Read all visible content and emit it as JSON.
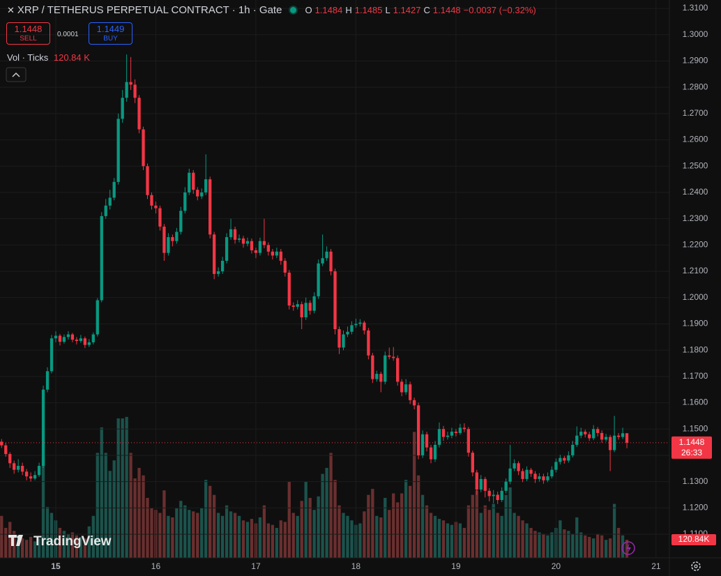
{
  "chart_data": {
    "type": "candlestick",
    "title": "XRP / TETHERUS PERPETUAL CONTRACT · 1h · Gate",
    "ohlc_labels": [
      "O",
      "H",
      "L",
      "C"
    ],
    "change": "−0.0037 (−0.32%)",
    "sell_price": "1.1448",
    "sell_label": "SELL",
    "spread": "0.0001",
    "buy_price": "1.1449",
    "buy_label": "BUY",
    "volume_title": "Vol · Ticks",
    "volume_last_label": "120.84 K",
    "volume_axis_label": "120.84K",
    "countdown": "26:33",
    "logo": "TradingView",
    "up_color": "#089981",
    "down_color": "#f23645",
    "up_volume_color": "#1d5f57",
    "down_volume_color": "#7a3535",
    "grid": true,
    "xlim": [
      -0.38,
      160.2
    ],
    "xticks": [
      {
        "value": 13,
        "label": "15"
      },
      {
        "value": 37,
        "label": "16"
      },
      {
        "value": 61,
        "label": "17"
      },
      {
        "value": 85,
        "label": "18"
      },
      {
        "value": 109,
        "label": "19"
      },
      {
        "value": 133,
        "label": "20"
      },
      {
        "value": 157,
        "label": "21"
      }
    ],
    "ylim": [
      1.101,
      1.3132
    ],
    "yticks": [
      {
        "value": 1.11,
        "label": "1.1100"
      },
      {
        "value": 1.12,
        "label": "1.1200"
      },
      {
        "value": 1.13,
        "label": "1.1300"
      },
      {
        "value": 1.14,
        "label": "1.1400"
      },
      {
        "value": 1.15,
        "label": "1.1500"
      },
      {
        "value": 1.16,
        "label": "1.1600"
      },
      {
        "value": 1.17,
        "label": "1.1700"
      },
      {
        "value": 1.18,
        "label": "1.1800"
      },
      {
        "value": 1.19,
        "label": "1.1900"
      },
      {
        "value": 1.2,
        "label": "1.2000"
      },
      {
        "value": 1.21,
        "label": "1.2100"
      },
      {
        "value": 1.22,
        "label": "1.2200"
      },
      {
        "value": 1.23,
        "label": "1.2300"
      },
      {
        "value": 1.24,
        "label": "1.2400"
      },
      {
        "value": 1.25,
        "label": "1.2500"
      },
      {
        "value": 1.26,
        "label": "1.2600"
      },
      {
        "value": 1.27,
        "label": "1.2700"
      },
      {
        "value": 1.28,
        "label": "1.2800"
      },
      {
        "value": 1.29,
        "label": "1.2900"
      },
      {
        "value": 1.3,
        "label": "1.3000"
      },
      {
        "value": 1.31,
        "label": "1.3100"
      }
    ],
    "vlim": [
      0,
      3720
    ],
    "ohlc": [
      [
        1.1452,
        1.1462,
        1.1428,
        1.1438
      ],
      [
        1.1438,
        1.1448,
        1.1395,
        1.1405
      ],
      [
        1.1405,
        1.1412,
        1.1352,
        1.137
      ],
      [
        1.137,
        1.138,
        1.133,
        1.1345
      ],
      [
        1.1345,
        1.1385,
        1.1335,
        1.136
      ],
      [
        1.136,
        1.1372,
        1.1325,
        1.1338
      ],
      [
        1.1338,
        1.1348,
        1.1305,
        1.132
      ],
      [
        1.132,
        1.1335,
        1.13,
        1.1312
      ],
      [
        1.1312,
        1.134,
        1.1305,
        1.1325
      ],
      [
        1.1325,
        1.1372,
        1.1318,
        1.136
      ],
      [
        1.136,
        1.1665,
        1.1352,
        1.165
      ],
      [
        1.165,
        1.1735,
        1.164,
        1.172
      ],
      [
        1.172,
        1.1858,
        1.1712,
        1.1845
      ],
      [
        1.1845,
        1.1872,
        1.183,
        1.1855
      ],
      [
        1.1855,
        1.1862,
        1.1818,
        1.1832
      ],
      [
        1.1832,
        1.186,
        1.1825,
        1.185
      ],
      [
        1.185,
        1.1872,
        1.184,
        1.186
      ],
      [
        1.186,
        1.1866,
        1.183,
        1.184
      ],
      [
        1.184,
        1.185,
        1.1822,
        1.1835
      ],
      [
        1.1835,
        1.1858,
        1.1828,
        1.1845
      ],
      [
        1.1845,
        1.1852,
        1.1808,
        1.182
      ],
      [
        1.182,
        1.1842,
        1.1812,
        1.183
      ],
      [
        1.183,
        1.1868,
        1.1822,
        1.186
      ],
      [
        1.186,
        1.1998,
        1.1852,
        1.199
      ],
      [
        1.199,
        1.2325,
        1.1982,
        1.231
      ],
      [
        1.231,
        1.2375,
        1.23,
        1.235
      ],
      [
        1.235,
        1.241,
        1.2335,
        1.238
      ],
      [
        1.238,
        1.2455,
        1.237,
        1.244
      ],
      [
        1.244,
        1.27,
        1.243,
        1.268
      ],
      [
        1.268,
        1.279,
        1.2665,
        1.276
      ],
      [
        1.276,
        1.2925,
        1.2745,
        1.282
      ],
      [
        1.282,
        1.2915,
        1.279,
        1.281
      ],
      [
        1.281,
        1.283,
        1.274,
        1.276
      ],
      [
        1.276,
        1.277,
        1.2625,
        1.264
      ],
      [
        1.264,
        1.265,
        1.2485,
        1.25
      ],
      [
        1.25,
        1.251,
        1.2375,
        1.239
      ],
      [
        1.239,
        1.24,
        1.2335,
        1.235
      ],
      [
        1.235,
        1.2365,
        1.232,
        1.234
      ],
      [
        1.234,
        1.235,
        1.2255,
        1.227
      ],
      [
        1.227,
        1.228,
        1.214,
        1.217
      ],
      [
        1.217,
        1.2245,
        1.216,
        1.223
      ],
      [
        1.223,
        1.224,
        1.2195,
        1.2215
      ],
      [
        1.2215,
        1.2265,
        1.2205,
        1.225
      ],
      [
        1.225,
        1.2345,
        1.224,
        1.233
      ],
      [
        1.233,
        1.242,
        1.232,
        1.24
      ],
      [
        1.24,
        1.249,
        1.239,
        1.2475
      ],
      [
        1.2475,
        1.2485,
        1.2395,
        1.241
      ],
      [
        1.241,
        1.242,
        1.237,
        1.2385
      ],
      [
        1.2385,
        1.2415,
        1.2375,
        1.24
      ],
      [
        1.24,
        1.2545,
        1.239,
        1.245
      ],
      [
        1.245,
        1.246,
        1.2225,
        1.224
      ],
      [
        1.224,
        1.225,
        1.207,
        1.209
      ],
      [
        1.209,
        1.2115,
        1.208,
        1.21
      ],
      [
        1.21,
        1.2155,
        1.209,
        1.214
      ],
      [
        1.214,
        1.2245,
        1.213,
        1.223
      ],
      [
        1.223,
        1.23,
        1.222,
        1.226
      ],
      [
        1.226,
        1.227,
        1.2205,
        1.222
      ],
      [
        1.222,
        1.224,
        1.221,
        1.2225
      ],
      [
        1.2225,
        1.2235,
        1.219,
        1.2205
      ],
      [
        1.2205,
        1.2228,
        1.2195,
        1.2215
      ],
      [
        1.2215,
        1.2225,
        1.2168,
        1.218
      ],
      [
        1.218,
        1.219,
        1.215,
        1.217
      ],
      [
        1.217,
        1.2228,
        1.216,
        1.2215
      ],
      [
        1.2215,
        1.23,
        1.2188,
        1.22
      ],
      [
        1.22,
        1.221,
        1.216,
        1.2175
      ],
      [
        1.2175,
        1.2185,
        1.2145,
        1.216
      ],
      [
        1.216,
        1.219,
        1.215,
        1.2175
      ],
      [
        1.2175,
        1.2185,
        1.2125,
        1.214
      ],
      [
        1.214,
        1.215,
        1.208,
        1.2095
      ],
      [
        1.2095,
        1.2105,
        1.1955,
        1.197
      ],
      [
        1.197,
        1.1982,
        1.195,
        1.1965
      ],
      [
        1.1965,
        1.199,
        1.1955,
        1.1975
      ],
      [
        1.1975,
        1.1985,
        1.188,
        1.1925
      ],
      [
        1.1925,
        1.2,
        1.1915,
        1.198
      ],
      [
        1.198,
        1.199,
        1.1935,
        1.195
      ],
      [
        1.195,
        1.202,
        1.194,
        1.2005
      ],
      [
        1.2005,
        1.2145,
        1.1995,
        1.213
      ],
      [
        1.213,
        1.224,
        1.212,
        1.215
      ],
      [
        1.215,
        1.2195,
        1.214,
        1.2175
      ],
      [
        1.2175,
        1.2185,
        1.2085,
        1.21
      ],
      [
        1.21,
        1.211,
        1.186,
        1.188
      ],
      [
        1.188,
        1.189,
        1.1785,
        1.181
      ],
      [
        1.181,
        1.1875,
        1.18,
        1.186
      ],
      [
        1.186,
        1.189,
        1.185,
        1.187
      ],
      [
        1.187,
        1.191,
        1.186,
        1.1895
      ],
      [
        1.1895,
        1.192,
        1.1885,
        1.19
      ],
      [
        1.19,
        1.1918,
        1.189,
        1.1905
      ],
      [
        1.1905,
        1.1912,
        1.186,
        1.1875
      ],
      [
        1.1875,
        1.1885,
        1.1765,
        1.178
      ],
      [
        1.178,
        1.179,
        1.1675,
        1.169
      ],
      [
        1.169,
        1.1722,
        1.168,
        1.171
      ],
      [
        1.171,
        1.1718,
        1.164,
        1.168
      ],
      [
        1.168,
        1.1795,
        1.167,
        1.178
      ],
      [
        1.178,
        1.181,
        1.1765,
        1.1775
      ],
      [
        1.1775,
        1.1812,
        1.176,
        1.177
      ],
      [
        1.177,
        1.178,
        1.1665,
        1.168
      ],
      [
        1.168,
        1.169,
        1.1625,
        1.164
      ],
      [
        1.164,
        1.169,
        1.163,
        1.167
      ],
      [
        1.167,
        1.168,
        1.1595,
        1.161
      ],
      [
        1.161,
        1.162,
        1.1575,
        1.159
      ],
      [
        1.159,
        1.16,
        1.1385,
        1.14
      ],
      [
        1.14,
        1.1495,
        1.139,
        1.148
      ],
      [
        1.148,
        1.149,
        1.1415,
        1.143
      ],
      [
        1.143,
        1.144,
        1.137,
        1.1385
      ],
      [
        1.1385,
        1.1455,
        1.1375,
        1.144
      ],
      [
        1.144,
        1.1525,
        1.143,
        1.15
      ],
      [
        1.15,
        1.1512,
        1.1455,
        1.147
      ],
      [
        1.147,
        1.149,
        1.146,
        1.1475
      ],
      [
        1.1475,
        1.1505,
        1.1465,
        1.149
      ],
      [
        1.149,
        1.15,
        1.1472,
        1.1485
      ],
      [
        1.1485,
        1.152,
        1.1478,
        1.1505
      ],
      [
        1.1505,
        1.1522,
        1.1488,
        1.15
      ],
      [
        1.15,
        1.1508,
        1.1395,
        1.141
      ],
      [
        1.141,
        1.1418,
        1.132,
        1.1335
      ],
      [
        1.1335,
        1.1345,
        1.125,
        1.127
      ],
      [
        1.127,
        1.1325,
        1.126,
        1.131
      ],
      [
        1.131,
        1.1318,
        1.124,
        1.1265
      ],
      [
        1.1265,
        1.1275,
        1.1225,
        1.1245
      ],
      [
        1.1245,
        1.1268,
        1.1218,
        1.125
      ],
      [
        1.125,
        1.1262,
        1.1215,
        1.123
      ],
      [
        1.123,
        1.1278,
        1.1222,
        1.1265
      ],
      [
        1.1265,
        1.1312,
        1.1255,
        1.13
      ],
      [
        1.13,
        1.144,
        1.129,
        1.135
      ],
      [
        1.135,
        1.1385,
        1.134,
        1.137
      ],
      [
        1.137,
        1.1378,
        1.1325,
        1.134
      ],
      [
        1.134,
        1.135,
        1.1298,
        1.131
      ],
      [
        1.131,
        1.1358,
        1.1302,
        1.1345
      ],
      [
        1.1345,
        1.1352,
        1.1318,
        1.133
      ],
      [
        1.133,
        1.134,
        1.1295,
        1.131
      ],
      [
        1.131,
        1.1332,
        1.13,
        1.132
      ],
      [
        1.132,
        1.133,
        1.1292,
        1.1305
      ],
      [
        1.1305,
        1.1335,
        1.1298,
        1.132
      ],
      [
        1.132,
        1.1358,
        1.1312,
        1.1345
      ],
      [
        1.1345,
        1.1388,
        1.1335,
        1.1375
      ],
      [
        1.1375,
        1.1402,
        1.1365,
        1.139
      ],
      [
        1.139,
        1.1398,
        1.1368,
        1.138
      ],
      [
        1.138,
        1.1415,
        1.1372,
        1.14
      ],
      [
        1.14,
        1.1455,
        1.1392,
        1.144
      ],
      [
        1.144,
        1.151,
        1.1432,
        1.1475
      ],
      [
        1.1475,
        1.1505,
        1.1465,
        1.149
      ],
      [
        1.149,
        1.1498,
        1.1468,
        1.148
      ],
      [
        1.148,
        1.149,
        1.1455,
        1.1465
      ],
      [
        1.1465,
        1.1515,
        1.1458,
        1.15
      ],
      [
        1.15,
        1.1508,
        1.1472,
        1.1485
      ],
      [
        1.1485,
        1.1495,
        1.1448,
        1.146
      ],
      [
        1.146,
        1.1482,
        1.1452,
        1.147
      ],
      [
        1.147,
        1.1478,
        1.134,
        1.142
      ],
      [
        1.142,
        1.155,
        1.1412,
        1.1475
      ],
      [
        1.1475,
        1.1485,
        1.146,
        1.147
      ],
      [
        1.147,
        1.1505,
        1.1462,
        1.1484
      ],
      [
        1.1484,
        1.1485,
        1.1427,
        1.1448
      ]
    ],
    "volume": [
      280,
      200,
      240,
      180,
      150,
      130,
      120,
      140,
      110,
      130,
      675,
      340,
      300,
      250,
      200,
      180,
      160,
      170,
      150,
      140,
      130,
      210,
      280,
      700,
      870,
      700,
      580,
      650,
      930,
      930,
      940,
      700,
      530,
      600,
      550,
      400,
      330,
      320,
      300,
      450,
      280,
      270,
      330,
      380,
      350,
      320,
      310,
      300,
      330,
      520,
      480,
      420,
      300,
      280,
      350,
      310,
      300,
      280,
      250,
      240,
      260,
      230,
      270,
      350,
      230,
      220,
      200,
      250,
      240,
      510,
      300,
      280,
      380,
      510,
      400,
      320,
      410,
      560,
      600,
      700,
      520,
      350,
      300,
      280,
      250,
      220,
      230,
      310,
      420,
      460,
      280,
      270,
      400,
      320,
      430,
      370,
      430,
      520,
      480,
      840,
      550,
      420,
      350,
      300,
      280,
      260,
      250,
      230,
      220,
      240,
      230,
      200,
      350,
      420,
      450,
      300,
      350,
      320,
      360,
      300,
      280,
      420,
      470,
      300,
      280,
      250,
      230,
      200,
      180,
      170,
      160,
      150,
      170,
      200,
      250,
      190,
      180,
      160,
      270,
      170,
      150,
      140,
      130,
      160,
      150,
      120,
      130,
      360,
      200,
      150,
      120.84
    ]
  }
}
